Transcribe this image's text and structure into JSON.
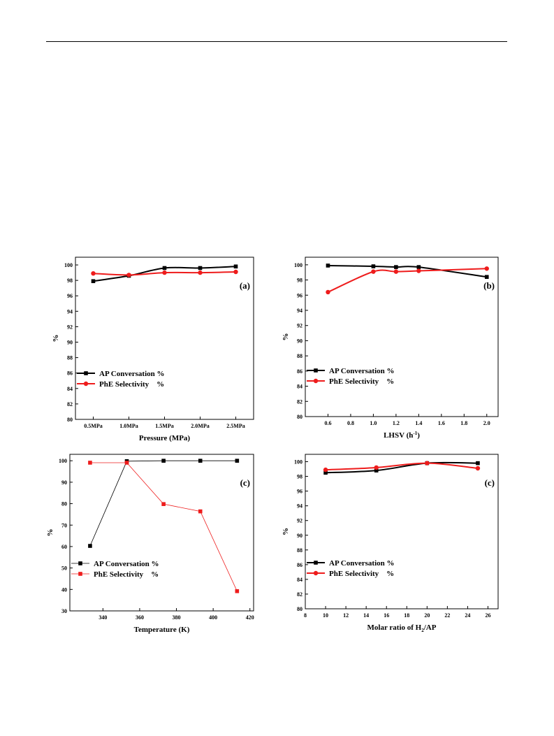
{
  "chart_data": [
    {
      "type": "line",
      "panel_label": "(a)",
      "xlabel": "Pressure (MPa)",
      "ylabel": "%",
      "categories": [
        "0.5MPa",
        "1.0MPa",
        "1.5MPa",
        "2.0MPa",
        "2.5MPa"
      ],
      "ylim": [
        80,
        101
      ],
      "yticks": [
        80,
        82,
        84,
        86,
        88,
        90,
        92,
        94,
        96,
        98,
        100
      ],
      "smooth": true,
      "legend_position": "lower-left",
      "series": [
        {
          "name": "AP Conversation %",
          "color": "#000000",
          "marker": "square",
          "values": [
            97.9,
            98.6,
            99.6,
            99.6,
            99.8
          ]
        },
        {
          "name": "PhE Selectivity    %",
          "color": "#ee1c1c",
          "marker": "circle",
          "values": [
            98.9,
            98.7,
            99.0,
            99.0,
            99.1
          ]
        }
      ]
    },
    {
      "type": "line",
      "panel_label": "(b)",
      "xlabel": "LHSV (h",
      "xlabel_sup": "-1",
      "xlabel_suffix": ")",
      "ylabel": "%",
      "xlim": [
        0.4,
        2.1
      ],
      "xticks": [
        0.6,
        0.8,
        1.0,
        1.2,
        1.4,
        1.6,
        1.8,
        2.0
      ],
      "xtick_decimals": 1,
      "ylim": [
        80,
        101
      ],
      "yticks": [
        80,
        82,
        84,
        86,
        88,
        90,
        92,
        94,
        96,
        98,
        100
      ],
      "smooth": true,
      "legend_position": "lower-left",
      "series": [
        {
          "name": "AP Conversation %",
          "color": "#000000",
          "marker": "square",
          "x": [
            0.6,
            1.0,
            1.2,
            1.4,
            2.0
          ],
          "values": [
            99.9,
            99.8,
            99.7,
            99.7,
            98.4
          ]
        },
        {
          "name": "PhE Selectivity    %",
          "color": "#ee1c1c",
          "marker": "circle",
          "x": [
            0.6,
            1.0,
            1.2,
            1.4,
            2.0
          ],
          "values": [
            96.4,
            99.1,
            99.1,
            99.2,
            99.5
          ]
        }
      ]
    },
    {
      "type": "line",
      "panel_label": "(c)",
      "xlabel": "Temperature (K)",
      "ylabel": "%",
      "xlim": [
        322,
        422
      ],
      "xticks": [
        340,
        360,
        380,
        400,
        420
      ],
      "xtick_decimals": 0,
      "ylim": [
        30,
        103
      ],
      "yticks": [
        30,
        40,
        50,
        60,
        70,
        80,
        90,
        100
      ],
      "smooth": false,
      "legend_position": "lower-left",
      "series": [
        {
          "name": "AP Conversation %",
          "color": "#000000",
          "marker": "square",
          "thin": true,
          "x": [
            333,
            353,
            373,
            393,
            413
          ],
          "values": [
            60.3,
            99.8,
            100,
            100,
            100
          ]
        },
        {
          "name": "PhE Selectivity    %",
          "color": "#ee1c1c",
          "marker": "square",
          "thin": true,
          "x": [
            333,
            353,
            373,
            393,
            413
          ],
          "values": [
            99.1,
            99.1,
            79.8,
            76.4,
            39.2
          ]
        }
      ]
    },
    {
      "type": "line",
      "panel_label": "(c)",
      "xlabel": "Molar ratio of H",
      "xlabel_sub": "2",
      "xlabel_suffix": "/AP",
      "ylabel": "%",
      "xlim": [
        8,
        27
      ],
      "xticks": [
        8,
        10,
        12,
        14,
        16,
        18,
        20,
        22,
        24,
        26
      ],
      "xtick_decimals": 0,
      "ylim": [
        80,
        101
      ],
      "yticks": [
        80,
        82,
        84,
        86,
        88,
        90,
        92,
        94,
        96,
        98,
        100
      ],
      "smooth": true,
      "legend_position": "lower-left",
      "series": [
        {
          "name": "AP Conversation %",
          "color": "#000000",
          "marker": "square",
          "x": [
            10,
            15,
            20,
            25
          ],
          "values": [
            98.5,
            98.8,
            99.8,
            99.8
          ]
        },
        {
          "name": "PhE Selectivity    %",
          "color": "#ee1c1c",
          "marker": "circle",
          "x": [
            10,
            15,
            20,
            25
          ],
          "values": [
            98.9,
            99.2,
            99.8,
            99.1
          ]
        }
      ]
    }
  ]
}
